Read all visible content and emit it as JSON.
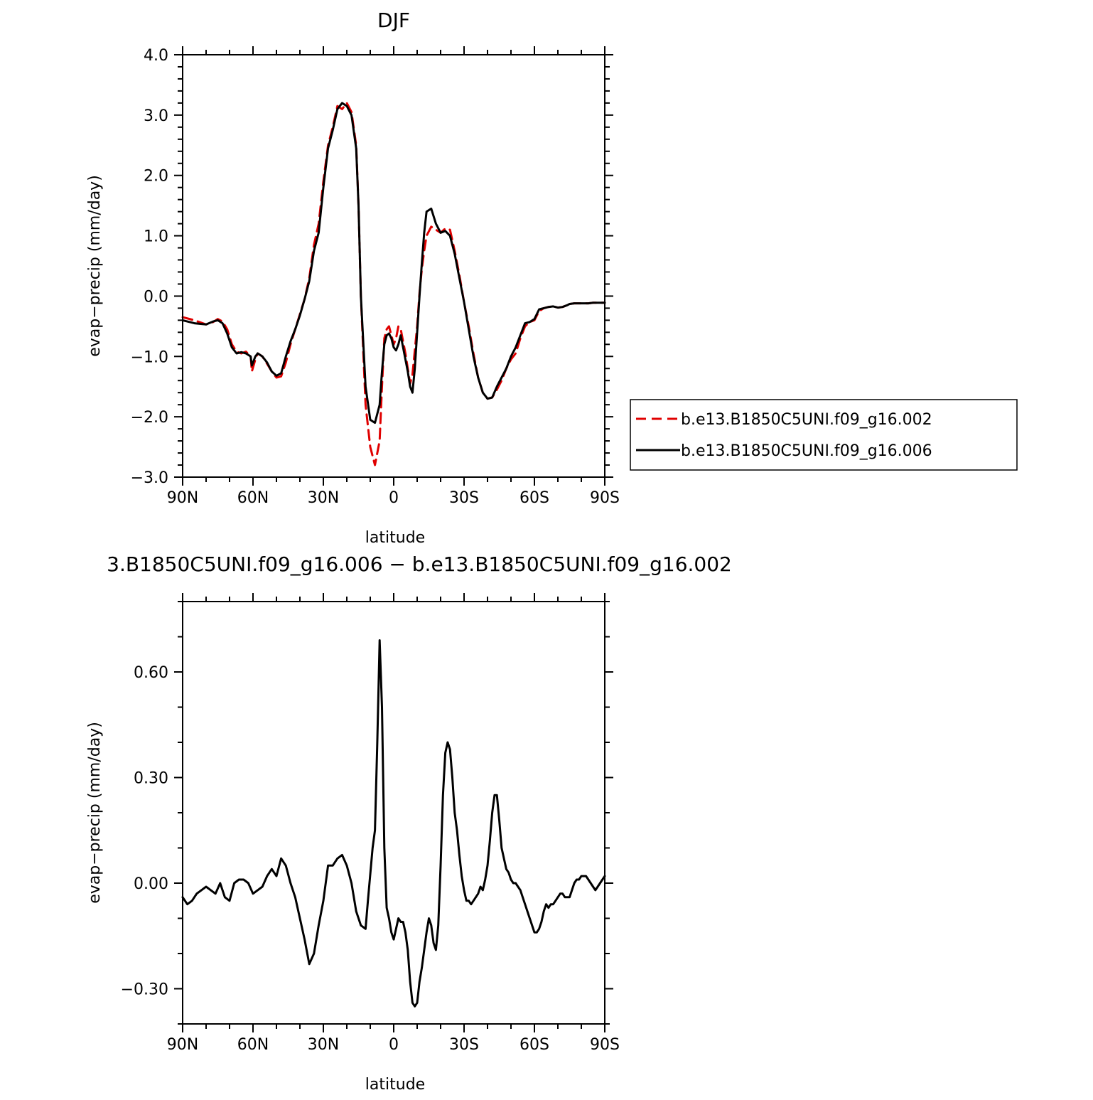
{
  "chart_data": [
    {
      "type": "line",
      "title": "DJF",
      "xlabel": "latitude",
      "ylabel": "evap−precip (mm/day)",
      "x_tick_labels": [
        "90N",
        "60N",
        "30N",
        "0",
        "30S",
        "60S",
        "90S"
      ],
      "x_tick_values": [
        90,
        60,
        30,
        0,
        -30,
        -60,
        -90
      ],
      "xlim": [
        90,
        -90
      ],
      "y_tick_labels": [
        "4.0",
        "3.0",
        "2.0",
        "1.0",
        "0.0",
        "−1.0",
        "−2.0",
        "−3.0"
      ],
      "y_tick_values": [
        4,
        3,
        2,
        1,
        0,
        -1,
        -2,
        -3
      ],
      "ylim": [
        -3,
        4
      ],
      "grid": false,
      "legend_placement": "outside right",
      "series": [
        {
          "name": "b.e13.B1850C5UNI.f09_g16.002",
          "color": "#e00000",
          "dash": "dashed",
          "x": [
            90,
            85,
            80,
            77,
            75,
            73,
            71,
            69,
            67,
            65,
            63,
            61,
            60.5,
            59,
            58,
            56,
            54,
            52,
            50,
            48,
            46,
            44,
            42,
            40,
            38,
            36,
            34,
            32,
            30,
            28,
            26,
            24,
            22,
            20,
            18,
            16,
            15,
            14,
            12,
            10,
            8,
            6,
            5,
            4,
            3,
            2,
            1,
            0,
            -1,
            -2,
            -3,
            -4,
            -5,
            -6,
            -7,
            -8,
            -9,
            -10,
            -11,
            -12,
            -13,
            -14,
            -16,
            -18,
            -20,
            -22,
            -24,
            -26,
            -28,
            -30,
            -32,
            -34,
            -36,
            -38,
            -40,
            -42,
            -44,
            -46,
            -48,
            -50,
            -52,
            -54,
            -56,
            -58,
            -60,
            -62,
            -64,
            -66,
            -68,
            -70,
            -72,
            -74,
            -75,
            -77,
            -79,
            -81,
            -83,
            -85,
            -87,
            -90
          ],
          "y": [
            -0.35,
            -0.4,
            -0.47,
            -0.43,
            -0.38,
            -0.42,
            -0.55,
            -0.8,
            -0.92,
            -0.95,
            -0.92,
            -1.0,
            -1.25,
            -1.05,
            -0.95,
            -1.0,
            -1.12,
            -1.25,
            -1.35,
            -1.33,
            -1.1,
            -0.8,
            -0.55,
            -0.3,
            -0.05,
            0.3,
            0.85,
            1.2,
            1.9,
            2.5,
            2.8,
            3.15,
            3.1,
            3.2,
            3.05,
            2.5,
            1.5,
            0.0,
            -1.8,
            -2.5,
            -2.8,
            -2.4,
            -1.5,
            -0.7,
            -0.55,
            -0.5,
            -0.65,
            -0.8,
            -0.7,
            -0.5,
            -0.55,
            -0.75,
            -0.95,
            -1.2,
            -1.45,
            -1.3,
            -0.9,
            -0.5,
            0.05,
            0.45,
            0.75,
            1.0,
            1.15,
            1.1,
            1.05,
            1.12,
            1.1,
            0.75,
            0.35,
            -0.1,
            -0.5,
            -0.95,
            -1.35,
            -1.6,
            -1.7,
            -1.68,
            -1.55,
            -1.4,
            -1.2,
            -1.05,
            -0.95,
            -0.7,
            -0.5,
            -0.43,
            -0.4,
            -0.25,
            -0.2,
            -0.18,
            -0.17,
            -0.19,
            -0.18,
            -0.15,
            -0.13,
            -0.12,
            -0.12,
            -0.12,
            -0.12,
            -0.11,
            -0.11,
            -0.11
          ]
        },
        {
          "name": "b.e13.B1850C5UNI.f09_g16.006",
          "color": "#000000",
          "dash": "solid",
          "x": [
            90,
            85,
            80,
            77,
            75,
            73,
            71,
            69,
            67,
            65,
            63,
            61,
            60.5,
            59,
            58,
            56,
            54,
            52,
            50,
            48,
            46,
            44,
            42,
            40,
            38,
            36,
            34,
            32,
            30,
            28,
            26,
            24,
            22,
            20,
            18,
            16,
            15,
            14,
            12,
            10,
            8,
            6,
            5,
            4,
            3,
            2,
            1,
            0,
            -1,
            -2,
            -3,
            -4,
            -5,
            -6,
            -7,
            -8,
            -9,
            -10,
            -11,
            -12,
            -13,
            -14,
            -16,
            -18,
            -20,
            -22,
            -24,
            -26,
            -28,
            -30,
            -32,
            -34,
            -36,
            -38,
            -40,
            -42,
            -44,
            -46,
            -48,
            -50,
            -52,
            -54,
            -56,
            -58,
            -60,
            -62,
            -64,
            -66,
            -68,
            -70,
            -72,
            -74,
            -75,
            -77,
            -79,
            -81,
            -83,
            -85,
            -87,
            -90
          ],
          "y": [
            -0.4,
            -0.45,
            -0.47,
            -0.42,
            -0.4,
            -0.45,
            -0.62,
            -0.85,
            -0.95,
            -0.93,
            -0.95,
            -1.0,
            -1.15,
            -1.0,
            -0.95,
            -1.0,
            -1.1,
            -1.25,
            -1.32,
            -1.28,
            -1.0,
            -0.75,
            -0.55,
            -0.32,
            -0.05,
            0.25,
            0.75,
            1.05,
            1.8,
            2.45,
            2.75,
            3.1,
            3.2,
            3.15,
            3.0,
            2.45,
            1.5,
            0.0,
            -1.5,
            -2.05,
            -2.1,
            -1.8,
            -1.25,
            -0.8,
            -0.65,
            -0.62,
            -0.7,
            -0.85,
            -0.9,
            -0.8,
            -0.65,
            -0.85,
            -1.05,
            -1.25,
            -1.5,
            -1.6,
            -1.2,
            -0.6,
            0.0,
            0.55,
            1.05,
            1.4,
            1.45,
            1.2,
            1.05,
            1.08,
            1.0,
            0.7,
            0.3,
            -0.1,
            -0.55,
            -1.0,
            -1.35,
            -1.6,
            -1.7,
            -1.68,
            -1.5,
            -1.35,
            -1.2,
            -1.0,
            -0.85,
            -0.65,
            -0.45,
            -0.43,
            -0.38,
            -0.22,
            -0.2,
            -0.18,
            -0.17,
            -0.19,
            -0.18,
            -0.15,
            -0.13,
            -0.12,
            -0.12,
            -0.12,
            -0.12,
            -0.11,
            -0.11,
            -0.11
          ]
        }
      ]
    },
    {
      "type": "line",
      "title": "3.B1850C5UNI.f09_g16.006 − b.e13.B1850C5UNI.f09_g16.002",
      "xlabel": "latitude",
      "ylabel": "evap−precip (mm/day)",
      "x_tick_labels": [
        "90N",
        "60N",
        "30N",
        "0",
        "30S",
        "60S",
        "90S"
      ],
      "x_tick_values": [
        90,
        60,
        30,
        0,
        -30,
        -60,
        -90
      ],
      "xlim": [
        90,
        -90
      ],
      "y_tick_labels": [
        "0.60",
        "0.30",
        "0.00",
        "−0.30"
      ],
      "y_tick_values": [
        0.6,
        0.3,
        0,
        -0.3
      ],
      "ylim": [
        -0.4,
        0.8
      ],
      "grid": false,
      "series": [
        {
          "color": "#000000",
          "dash": "solid",
          "x": [
            90,
            88,
            86,
            84,
            82,
            80,
            78,
            76,
            74,
            72,
            70,
            68,
            66,
            64,
            62,
            60,
            58,
            56,
            54,
            52,
            50,
            48,
            46,
            44,
            42,
            40,
            38,
            36,
            34,
            32,
            30,
            28,
            26,
            24,
            22,
            20,
            18,
            16,
            14,
            12,
            11,
            9,
            8,
            7,
            6,
            5,
            4,
            3,
            2,
            1,
            0,
            -1,
            -2,
            -3,
            -4,
            -5,
            -6,
            -7,
            -8,
            -9,
            -10,
            -11,
            -12,
            -13,
            -14,
            -15,
            -16,
            -17,
            -18,
            -19,
            -20,
            -21,
            -22,
            -23,
            -24,
            -25,
            -26,
            -27,
            -28,
            -29,
            -30,
            -31,
            -32,
            -33,
            -34,
            -35,
            -36,
            -37,
            -38,
            -39,
            -40,
            -41,
            -42,
            -43,
            -44,
            -45,
            -46,
            -47,
            -48,
            -49,
            -50,
            -51,
            -52,
            -53,
            -54,
            -55,
            -56,
            -57,
            -58,
            -59,
            -60,
            -61,
            -62,
            -63,
            -64,
            -65,
            -66,
            -67,
            -68,
            -69,
            -70,
            -71,
            -72,
            -73,
            -74,
            -75,
            -76,
            -77,
            -78,
            -79,
            -80,
            -81,
            -82,
            -83,
            -84,
            -85,
            -86,
            -87,
            -88,
            -89,
            -90
          ],
          "y": [
            -0.04,
            -0.06,
            -0.05,
            -0.03,
            -0.02,
            -0.01,
            -0.02,
            -0.03,
            0.0,
            -0.04,
            -0.05,
            0.0,
            0.01,
            0.01,
            0.0,
            -0.03,
            -0.02,
            -0.01,
            0.02,
            0.04,
            0.02,
            0.07,
            0.05,
            0.0,
            -0.04,
            -0.1,
            -0.16,
            -0.23,
            -0.2,
            -0.12,
            -0.05,
            0.05,
            0.05,
            0.07,
            0.08,
            0.05,
            0.0,
            -0.08,
            -0.12,
            -0.13,
            -0.05,
            0.1,
            0.15,
            0.4,
            0.69,
            0.5,
            0.1,
            -0.07,
            -0.1,
            -0.14,
            -0.16,
            -0.13,
            -0.1,
            -0.11,
            -0.11,
            -0.14,
            -0.19,
            -0.28,
            -0.34,
            -0.35,
            -0.34,
            -0.28,
            -0.24,
            -0.19,
            -0.14,
            -0.1,
            -0.12,
            -0.17,
            -0.19,
            -0.12,
            0.05,
            0.25,
            0.37,
            0.4,
            0.38,
            0.3,
            0.2,
            0.15,
            0.08,
            0.02,
            -0.02,
            -0.05,
            -0.05,
            -0.06,
            -0.05,
            -0.04,
            -0.03,
            -0.01,
            -0.02,
            0.01,
            0.05,
            0.12,
            0.2,
            0.25,
            0.25,
            0.18,
            0.1,
            0.07,
            0.04,
            0.03,
            0.01,
            0.0,
            0.0,
            -0.01,
            -0.02,
            -0.04,
            -0.06,
            -0.08,
            -0.1,
            -0.12,
            -0.14,
            -0.14,
            -0.13,
            -0.11,
            -0.08,
            -0.06,
            -0.07,
            -0.06,
            -0.06,
            -0.05,
            -0.04,
            -0.03,
            -0.03,
            -0.04,
            -0.04,
            -0.04,
            -0.02,
            0.0,
            0.01,
            0.01,
            0.02,
            0.02,
            0.02,
            0.01,
            0.0,
            -0.01,
            -0.02,
            -0.01,
            0.0,
            0.01,
            0.02
          ]
        }
      ]
    }
  ]
}
